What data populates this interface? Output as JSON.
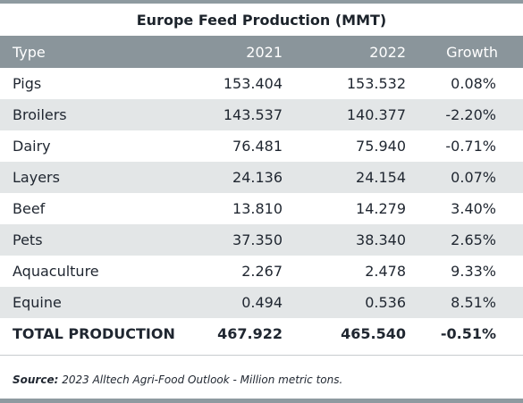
{
  "title": "Europe Feed Production (MMT)",
  "headers": {
    "type": "Type",
    "y2021": "2021",
    "y2022": "2022",
    "growth": "Growth"
  },
  "rows": [
    {
      "type": "Pigs",
      "y2021": "153.404",
      "y2022": "153.532",
      "growth": "0.08%"
    },
    {
      "type": "Broilers",
      "y2021": "143.537",
      "y2022": "140.377",
      "growth": "-2.20%"
    },
    {
      "type": "Dairy",
      "y2021": "76.481",
      "y2022": "75.940",
      "growth": "-0.71%"
    },
    {
      "type": "Layers",
      "y2021": "24.136",
      "y2022": "24.154",
      "growth": "0.07%"
    },
    {
      "type": "Beef",
      "y2021": "13.810",
      "y2022": "14.279",
      "growth": "3.40%"
    },
    {
      "type": "Pets",
      "y2021": "37.350",
      "y2022": "38.340",
      "growth": "2.65%"
    },
    {
      "type": "Aquaculture",
      "y2021": "2.267",
      "y2022": "2.478",
      "growth": "9.33%"
    },
    {
      "type": "Equine",
      "y2021": "0.494",
      "y2022": "0.536",
      "growth": "8.51%"
    }
  ],
  "total": {
    "type": "TOTAL PRODUCTION",
    "y2021": "467.922",
    "y2022": "465.540",
    "growth": "-0.51%"
  },
  "source": {
    "label": "Source:",
    "text": " 2023 Alltech Agri-Food Outlook - Million metric tons."
  }
}
